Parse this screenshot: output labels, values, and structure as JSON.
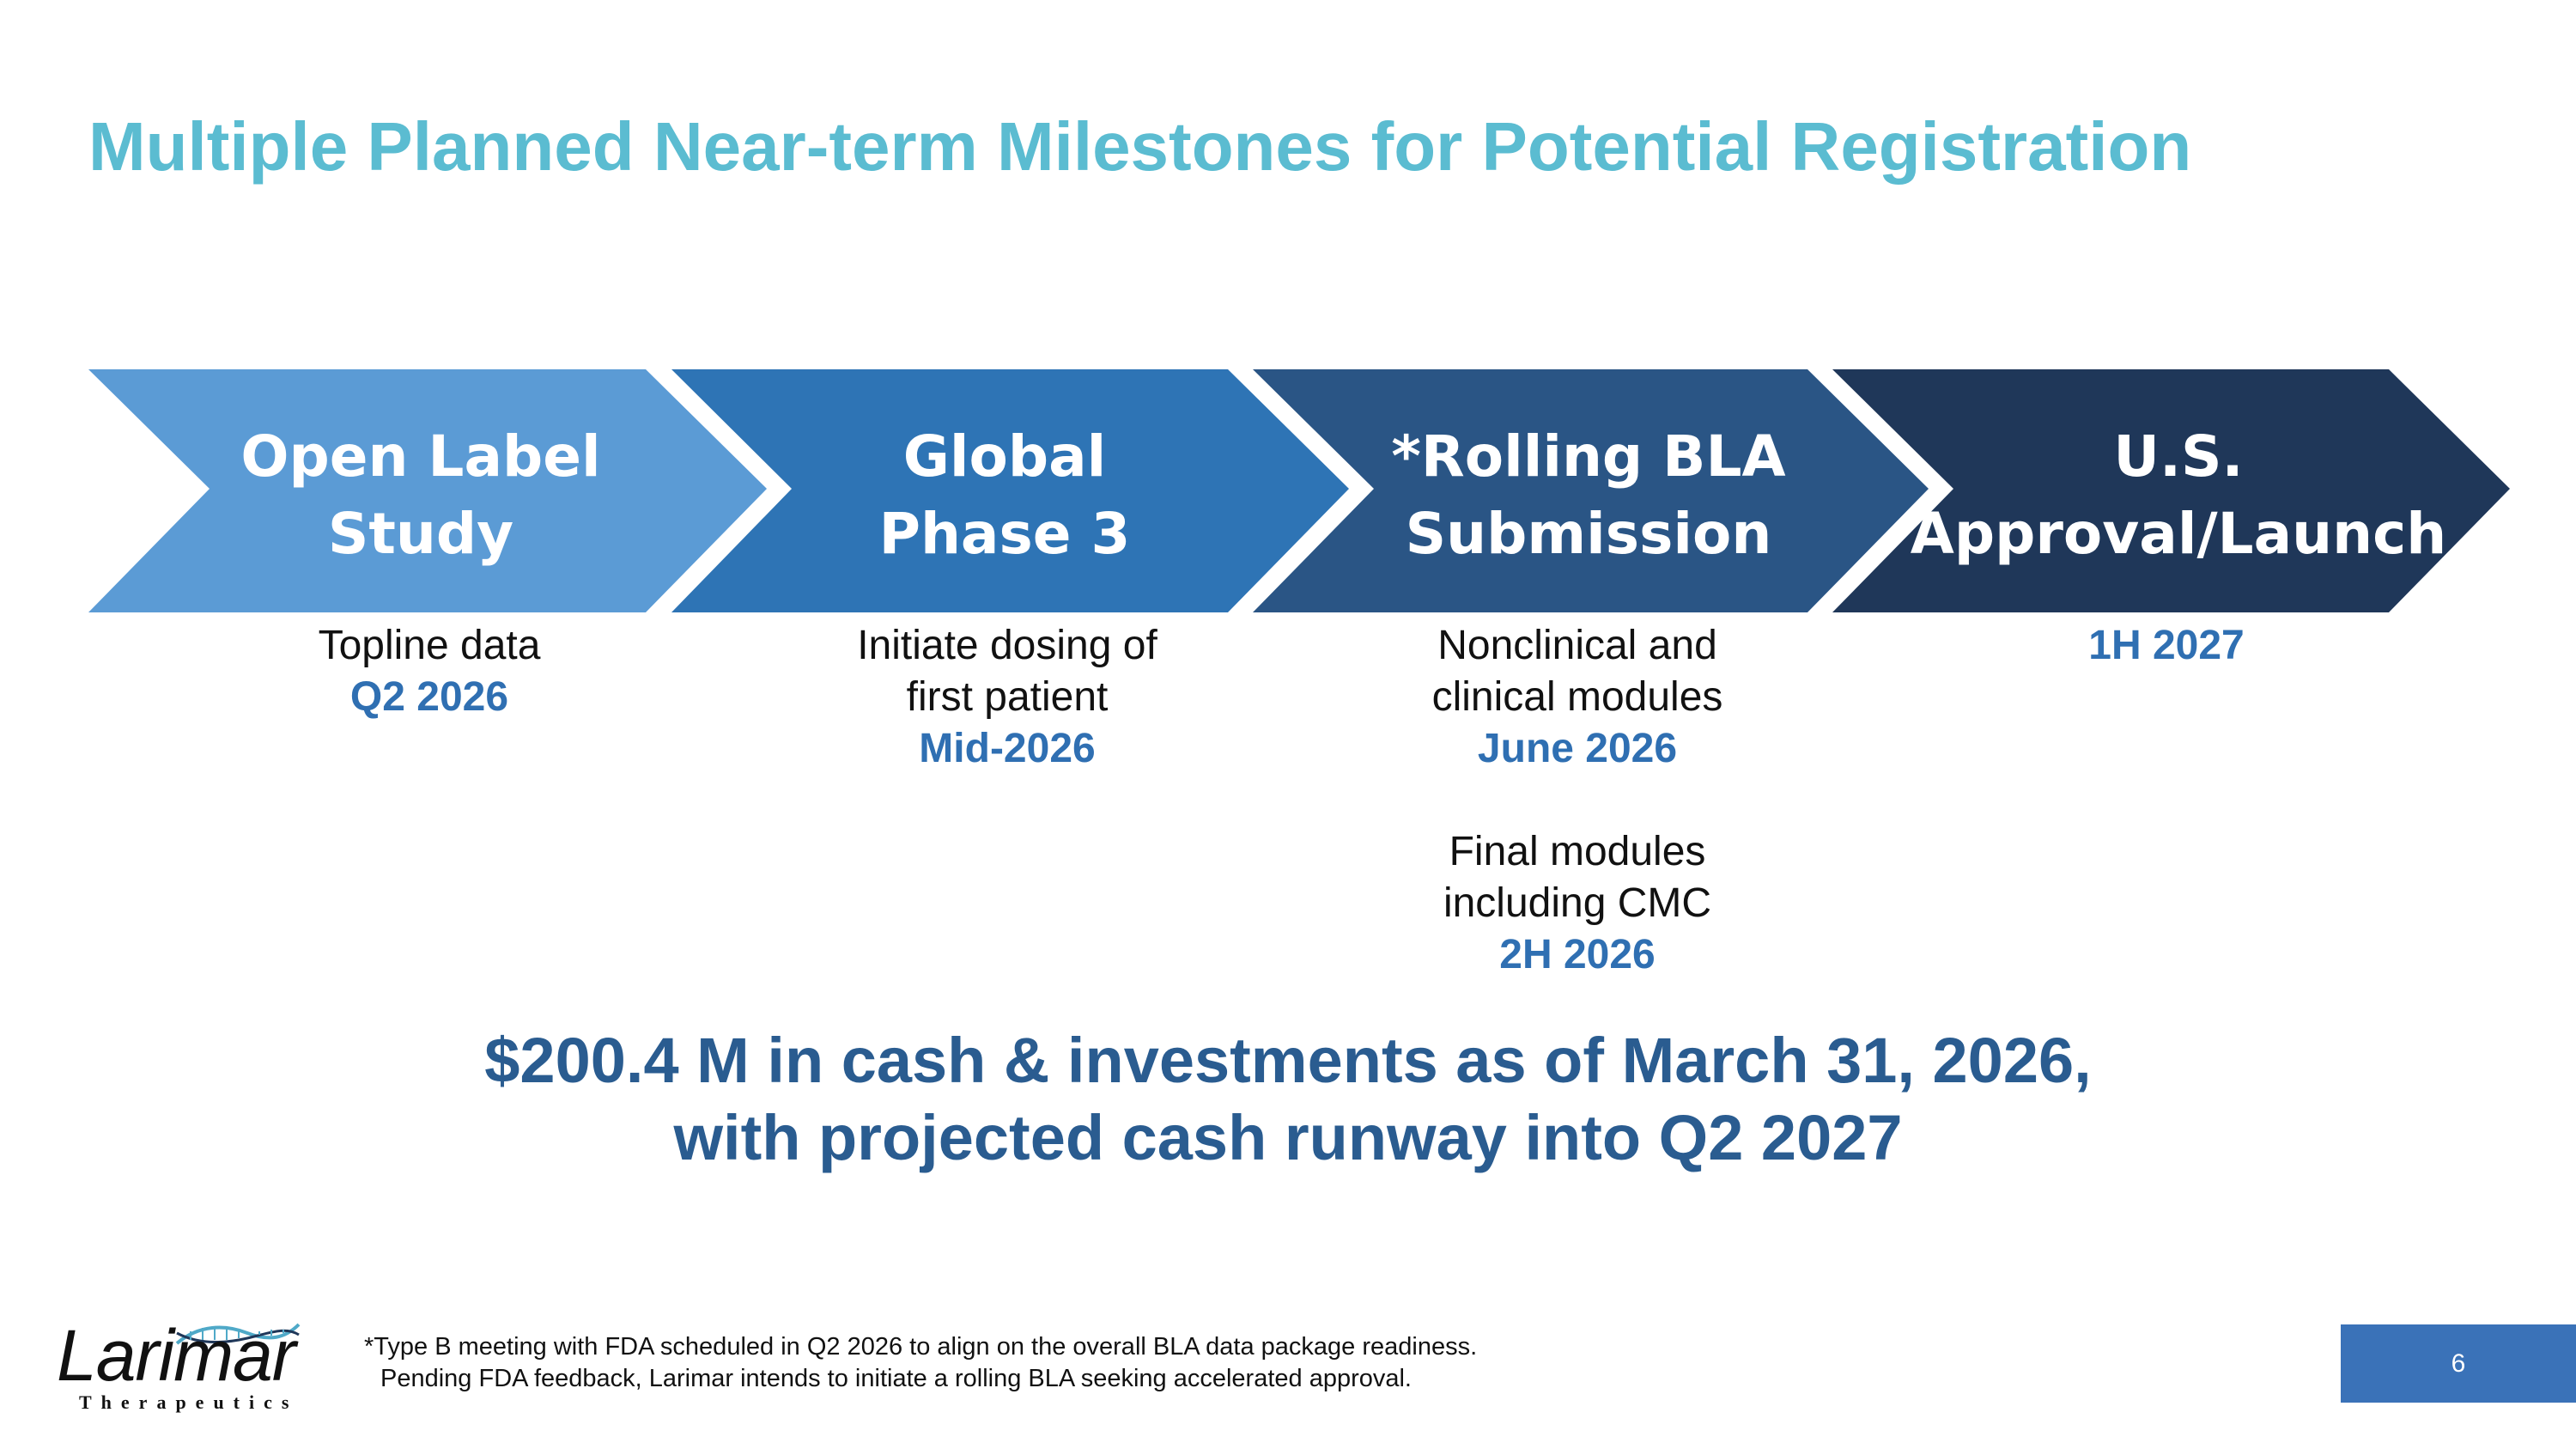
{
  "title": "Multiple Planned Near-term Milestones for Potential Registration",
  "steps": [
    {
      "lines": [
        "Open Label",
        "Study"
      ],
      "color": "#5b9bd5"
    },
    {
      "lines": [
        "Global",
        "Phase 3"
      ],
      "color": "#2e74b5"
    },
    {
      "lines": [
        "*Rolling BLA",
        "Submission"
      ],
      "color": "#2a5585"
    },
    {
      "lines": [
        "U.S.",
        "Approval/Launch"
      ],
      "color": "#1f3759"
    }
  ],
  "milestones": [
    {
      "text": [
        "Topline data"
      ],
      "date": "Q2 2026"
    },
    {
      "text": [
        "Initiate dosing of",
        "first patient"
      ],
      "date": "Mid-2026"
    },
    {
      "text": [
        "Nonclinical and",
        "clinical modules"
      ],
      "date": "June 2026",
      "text2": [
        "Final modules",
        "including CMC"
      ],
      "date2": "2H 2026"
    },
    {
      "text": [],
      "date": "1H 2027"
    }
  ],
  "cash": {
    "line1": "$200.4 M in cash & investments as of March 31, 2026,",
    "line2": "with projected cash runway into Q2 2027"
  },
  "footnote": {
    "line1": "*Type B meeting with FDA scheduled in Q2 2026 to align on the overall BLA data package readiness.",
    "line2": "Pending FDA feedback, Larimar intends to initiate a rolling BLA seeking accelerated approval."
  },
  "logo": {
    "name": "Larimar",
    "sub": "Therapeutics"
  },
  "page_number": "6",
  "colors": {
    "title": "#5bbcd1",
    "date": "#2f6fb2",
    "cash": "#2a5c90",
    "page_box": "#3a72b8"
  }
}
